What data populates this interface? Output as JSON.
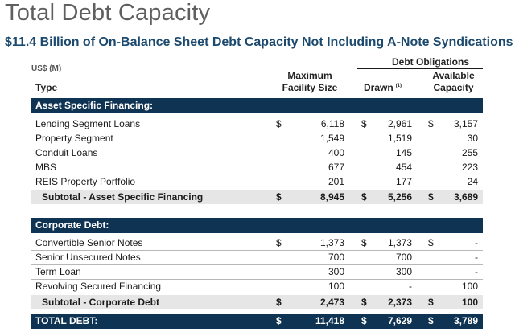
{
  "title": "Total Debt Capacity",
  "subtitle": "$11.4 Billion of On-Balance Sheet Debt Capacity Not Including A-Note Syndications",
  "header": {
    "units": "US$ (M)",
    "type": "Type",
    "debt_obligations": "Debt Obligations",
    "max_facility_line1": "Maximum",
    "max_facility_line2": "Facility Size",
    "drawn": "Drawn",
    "drawn_note": "(1)",
    "available_line1": "Available",
    "available_line2": "Capacity"
  },
  "sections": [
    {
      "title": "Asset Specific Financing:",
      "rows": [
        {
          "label": "Lending Segment Loans",
          "c1": "$",
          "max": "6,118",
          "c2": "$",
          "drawn": "2,961",
          "c3": "$",
          "avail": "3,157"
        },
        {
          "label": "Property Segment",
          "c1": "",
          "max": "1,549",
          "c2": "",
          "drawn": "1,519",
          "c3": "",
          "avail": "30"
        },
        {
          "label": "Conduit Loans",
          "c1": "",
          "max": "400",
          "c2": "",
          "drawn": "145",
          "c3": "",
          "avail": "255"
        },
        {
          "label": "MBS",
          "c1": "",
          "max": "677",
          "c2": "",
          "drawn": "454",
          "c3": "",
          "avail": "223"
        },
        {
          "label": "REIS Property Portfolio",
          "c1": "",
          "max": "201",
          "c2": "",
          "drawn": "177",
          "c3": "",
          "avail": "24"
        }
      ],
      "subtotal": {
        "label": "Subtotal - Asset Specific Financing",
        "c1": "$",
        "max": "8,945",
        "c2": "$",
        "drawn": "5,256",
        "c3": "$",
        "avail": "3,689"
      }
    },
    {
      "title": "Corporate Debt:",
      "rows": [
        {
          "label": "Convertible Senior Notes",
          "c1": "$",
          "max": "1,373",
          "c2": "$",
          "drawn": "1,373",
          "c3": "$",
          "avail": "-"
        },
        {
          "label": "Senior Unsecured Notes",
          "c1": "",
          "max": "700",
          "c2": "",
          "drawn": "700",
          "c3": "",
          "avail": "-"
        },
        {
          "label": "Term Loan",
          "c1": "",
          "max": "300",
          "c2": "",
          "drawn": "300",
          "c3": "",
          "avail": "-"
        },
        {
          "label": "Revolving Secured Financing",
          "c1": "",
          "max": "100",
          "c2": "",
          "drawn": "-",
          "c3": "",
          "avail": "100"
        }
      ],
      "subtotal": {
        "label": "Subtotal - Corporate Debt",
        "c1": "$",
        "max": "2,473",
        "c2": "$",
        "drawn": "2,373",
        "c3": "$",
        "avail": "100"
      }
    }
  ],
  "total": {
    "label": "TOTAL DEBT:",
    "c1": "$",
    "max": "11,418",
    "c2": "$",
    "drawn": "7,629",
    "c3": "$",
    "avail": "3,789"
  }
}
